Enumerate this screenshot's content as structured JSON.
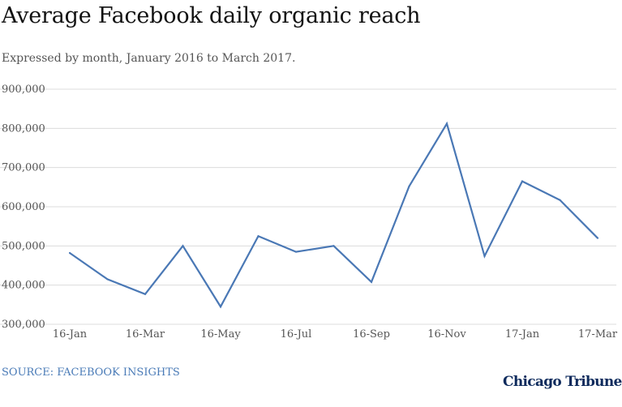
{
  "chart_data": {
    "type": "line",
    "title": "Average Facebook daily organic reach",
    "subtitle": "Expressed by month, January 2016 to March 2017.",
    "source": "SOURCE: FACEBOOK INSIGHTS",
    "brand": "Chicago Tribune",
    "x": [
      "16-Jan",
      "16-Feb",
      "16-Mar",
      "16-Apr",
      "16-May",
      "16-Jun",
      "16-Jul",
      "16-Aug",
      "16-Sep",
      "16-Oct",
      "16-Nov",
      "16-Dec",
      "17-Jan",
      "17-Feb",
      "17-Mar"
    ],
    "x_tick_labels": [
      "16-Jan",
      "16-Mar",
      "16-May",
      "16-Jul",
      "16-Sep",
      "16-Nov",
      "17-Jan",
      "17-Mar"
    ],
    "y_tick_labels": [
      "300,000",
      "400,000",
      "500,000",
      "600,000",
      "700,000",
      "800,000",
      "900,000"
    ],
    "series": [
      {
        "values": [
          482000,
          415000,
          377000,
          500000,
          345000,
          525000,
          485000,
          500000,
          408000,
          652000,
          812000,
          474000,
          665000,
          617000,
          520000
        ]
      }
    ],
    "ylim": [
      300000,
      900000
    ],
    "grid": true,
    "line_color": "#4a78b5"
  }
}
